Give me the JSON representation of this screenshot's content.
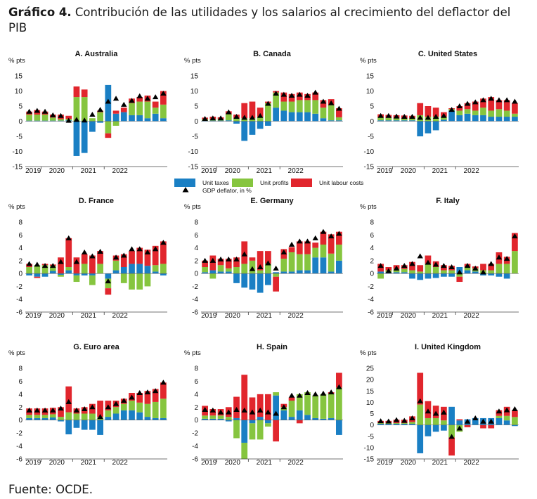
{
  "header": {
    "title_bold": "Gráfico 4.",
    "title_rest": " Contribución de las utilidades y los salarios al crecimiento del deflactor del PIB"
  },
  "footer": {
    "source": "Fuente: OCDE."
  },
  "colors": {
    "unit_taxes": "#1a7fc4",
    "unit_profits": "#86c53f",
    "unit_labour_costs": "#e1262d",
    "gdp_deflator": "#000000"
  },
  "legend": {
    "unit_taxes": "Unit taxes",
    "unit_profits": "Unit profits",
    "unit_labour_costs": "Unit labour costs",
    "gdp_deflator": "GDP deflator, in %"
  },
  "chart_data": [
    {
      "type": "bar",
      "panel": "A. Australia",
      "ylabel": "% pts",
      "ylim": [
        -15,
        15
      ],
      "yticks": [
        15,
        10,
        5,
        0,
        -5,
        -10,
        -15
      ],
      "years": [
        "2019",
        "2020",
        "2021",
        "2022"
      ],
      "series": [
        {
          "name": "Unit taxes",
          "values": [
            0.2,
            0.2,
            0.2,
            0.2,
            0.2,
            0.3,
            -11.5,
            -10.5,
            -3.5,
            -0.5,
            12,
            2.5,
            3,
            2,
            2,
            1,
            2.5,
            1
          ]
        },
        {
          "name": "Unit profits",
          "values": [
            2,
            2,
            2,
            1,
            0.5,
            0.5,
            8,
            8,
            1,
            3,
            -4,
            -1.5,
            0,
            4,
            4.5,
            5.5,
            2,
            4.5
          ]
        },
        {
          "name": "Unit labour costs",
          "values": [
            1,
            1.5,
            1,
            1,
            1.5,
            1,
            3.5,
            2.5,
            0,
            0.5,
            -1.5,
            1,
            1.5,
            1.5,
            1.5,
            2,
            2,
            4.5
          ]
        }
      ],
      "gdp_deflator": [
        3.2,
        3.5,
        3.2,
        2,
        1.8,
        0.2,
        0.5,
        0.3,
        2.2,
        3.8,
        6.5,
        7.5,
        5.5,
        6.8,
        8.3,
        7.5,
        8,
        9.2
      ]
    },
    {
      "type": "bar",
      "panel": "B. Canada",
      "ylabel": "% pts",
      "ylim": [
        -15,
        15
      ],
      "yticks": [
        15,
        10,
        5,
        0,
        -5,
        -10,
        -15
      ],
      "years": [
        "2019",
        "2020",
        "2021",
        "2022"
      ],
      "series": [
        {
          "name": "Unit taxes",
          "values": [
            0.2,
            0.2,
            0.2,
            0.3,
            -0.8,
            -6.5,
            -4.5,
            -2.5,
            -1.5,
            4.5,
            3.5,
            3,
            3,
            3,
            2.5,
            1,
            0.3,
            0.3
          ]
        },
        {
          "name": "Unit profits",
          "values": [
            0.5,
            0.5,
            0.5,
            2,
            1,
            1,
            1,
            1.5,
            6,
            5,
            3,
            3.5,
            4,
            4,
            4.5,
            3.5,
            5,
            1
          ]
        },
        {
          "name": "Unit labour costs",
          "values": [
            0.5,
            0.8,
            0.6,
            1,
            1.2,
            5,
            5.5,
            3,
            0.5,
            0.5,
            3,
            2.5,
            2.5,
            2,
            2.5,
            2.5,
            2,
            3
          ]
        }
      ],
      "gdp_deflator": [
        0.8,
        1,
        1,
        3,
        1.5,
        1.2,
        1.2,
        1.8,
        5.8,
        9.2,
        8.8,
        8.5,
        8.8,
        8.5,
        9.5,
        6.5,
        6,
        4.2
      ]
    },
    {
      "type": "bar",
      "panel": "C. United States",
      "ylabel": "% pts",
      "ylim": [
        -15,
        15
      ],
      "yticks": [
        15,
        10,
        5,
        0,
        -5,
        -10,
        -15
      ],
      "years": [
        "2019",
        "2020",
        "2021",
        "2022"
      ],
      "series": [
        {
          "name": "Unit taxes",
          "values": [
            0.3,
            0.3,
            0.3,
            0.3,
            0.3,
            -5,
            -4,
            -3,
            0.5,
            3.5,
            2,
            2.5,
            2,
            2,
            1.5,
            1.5,
            1.5,
            1.5
          ]
        },
        {
          "name": "Unit profits",
          "values": [
            1,
            0.8,
            0.7,
            0.6,
            0.7,
            2,
            1.5,
            1.5,
            1,
            0.5,
            1.5,
            1.5,
            1.5,
            2.5,
            2,
            2.5,
            2,
            1
          ]
        },
        {
          "name": "Unit labour costs",
          "values": [
            1,
            1,
            1,
            1,
            0.8,
            4,
            3.5,
            3,
            1.5,
            0.3,
            1.5,
            2,
            3,
            3,
            4.5,
            3,
            3.5,
            3.5
          ]
        }
      ],
      "gdp_deflator": [
        1.8,
        1.8,
        1.6,
        1.5,
        1.5,
        1.2,
        1.2,
        1.5,
        1.8,
        3.8,
        5,
        5.8,
        6.3,
        7,
        7.5,
        7,
        7,
        6.5
      ]
    },
    {
      "type": "bar",
      "panel": "D. France",
      "ylabel": "% pts",
      "ylim": [
        -6,
        8
      ],
      "yticks": [
        8,
        6,
        4,
        2,
        0,
        -2,
        -4,
        -6
      ],
      "years": [
        "2019",
        "2020",
        "2021",
        "2022"
      ],
      "series": [
        {
          "name": "Unit taxes",
          "values": [
            -0.3,
            -0.5,
            -0.5,
            0.4,
            -0.2,
            0.5,
            -0.3,
            -0.3,
            -0.3,
            0,
            -0.8,
            0.5,
            1,
            1.5,
            1.5,
            1.2,
            0.3,
            -0.3
          ]
        },
        {
          "name": "Unit profits",
          "values": [
            1,
            1.3,
            1.3,
            0.8,
            -0.3,
            0.5,
            -1,
            1.5,
            -1.5,
            1.5,
            -1.5,
            1.5,
            -1.5,
            -2.5,
            -2.5,
            -2,
            1,
            1.5
          ]
        },
        {
          "name": "Unit labour costs",
          "values": [
            0.5,
            -0.2,
            0.2,
            0.2,
            2.5,
            4.5,
            2.5,
            1.5,
            2.8,
            2,
            -1,
            0.8,
            2,
            2,
            2.5,
            2.5,
            3,
            3.5
          ]
        }
      ],
      "gdp_deflator": [
        1.5,
        1.4,
        1.2,
        1.2,
        1.8,
        5.5,
        1.8,
        3.3,
        2.7,
        3.4,
        -1.2,
        2.5,
        2.8,
        3.8,
        3.8,
        3.3,
        3.8,
        4.8
      ]
    },
    {
      "type": "bar",
      "panel": "E. Germany",
      "ylabel": "% pts",
      "ylim": [
        -6,
        8
      ],
      "yticks": [
        8,
        6,
        4,
        2,
        0,
        -2,
        -4,
        -6
      ],
      "years": [
        "2019",
        "2020",
        "2021",
        "2022"
      ],
      "series": [
        {
          "name": "Unit taxes",
          "values": [
            0.2,
            0.5,
            0.3,
            0.3,
            -1.5,
            -2.2,
            -2.5,
            -3,
            -1.8,
            0.2,
            0.3,
            0.3,
            0.5,
            0.5,
            2.5,
            2.5,
            0.3,
            2
          ]
        },
        {
          "name": "Unit profits",
          "values": [
            0.8,
            -0.8,
            1,
            0.5,
            1,
            1.5,
            2,
            0.5,
            1.5,
            -0.5,
            2,
            3,
            2.5,
            2.5,
            1.5,
            2,
            2.8,
            2.5
          ]
        },
        {
          "name": "Unit labour costs",
          "values": [
            1,
            2.3,
            1,
            1.5,
            1.5,
            3.5,
            0.5,
            3,
            2,
            -2.3,
            1.5,
            0.8,
            2,
            2,
            0.8,
            2,
            3,
            2
          ]
        }
      ],
      "gdp_deflator": [
        2,
        2,
        2.2,
        2.2,
        2.2,
        3,
        0.7,
        1,
        1.6,
        0.8,
        3.3,
        4.5,
        5,
        5,
        5.5,
        6.5,
        5.8,
        6.2
      ]
    },
    {
      "type": "bar",
      "panel": "F. Italy",
      "ylabel": "% pts",
      "ylim": [
        -6,
        8
      ],
      "yticks": [
        8,
        6,
        4,
        2,
        0,
        -2,
        -4,
        -6
      ],
      "years": [
        "2019",
        "2020",
        "2021",
        "2022"
      ],
      "series": [
        {
          "name": "Unit taxes",
          "values": [
            0.3,
            0.2,
            0.2,
            0.2,
            -0.8,
            -1,
            -0.8,
            -0.7,
            -0.5,
            -0.5,
            1,
            0.5,
            0.3,
            -0.3,
            -0.3,
            -0.5,
            -0.8,
            0
          ]
        },
        {
          "name": "Unit profits",
          "values": [
            -0.8,
            0.3,
            0.5,
            0.5,
            0.5,
            0.3,
            1.5,
            1,
            0.5,
            0.5,
            -0.5,
            0.5,
            0.5,
            0.5,
            0.5,
            1.5,
            1.5,
            3.5
          ]
        },
        {
          "name": "Unit labour costs",
          "values": [
            1.2,
            0.5,
            0.6,
            0.6,
            1.3,
            1,
            1.3,
            0.9,
            0.8,
            0.7,
            -0.8,
            0.5,
            0.3,
            1,
            1,
            1.8,
            1.1,
            2.8
          ]
        }
      ],
      "gdp_deflator": [
        1.2,
        0.4,
        0.8,
        1.2,
        1.5,
        2.7,
        1.7,
        1.4,
        1.2,
        1,
        0.2,
        1.2,
        0.8,
        0.2,
        1.5,
        2.5,
        2.3,
        5.8
      ]
    },
    {
      "type": "bar",
      "panel": "G. Euro area",
      "ylabel": "% pts",
      "ylim": [
        -6,
        8
      ],
      "yticks": [
        8,
        6,
        4,
        2,
        0,
        -2,
        -4,
        -6
      ],
      "years": [
        "2019",
        "2020",
        "2021",
        "2022"
      ],
      "series": [
        {
          "name": "Unit taxes",
          "values": [
            0.3,
            0.3,
            0.3,
            0.4,
            -0.2,
            -2.2,
            -1.2,
            -1.5,
            -1.5,
            -2.3,
            0.5,
            1,
            1.5,
            1.5,
            1.2,
            0.5,
            0.3,
            0.3
          ]
        },
        {
          "name": "Unit profits",
          "values": [
            0.5,
            0.5,
            0.5,
            0.5,
            0.5,
            1.2,
            1,
            1,
            1,
            0.5,
            1,
            1,
            1,
            1.5,
            1.5,
            2,
            2.5,
            3
          ]
        },
        {
          "name": "Unit labour costs",
          "values": [
            1,
            1,
            1,
            1,
            1.5,
            4,
            0.8,
            1,
            1.5,
            2.5,
            1.5,
            1,
            0.8,
            1.2,
            1.5,
            2,
            2,
            2.5
          ]
        }
      ],
      "gdp_deflator": [
        1.5,
        1.5,
        1.5,
        1.5,
        1.8,
        2.8,
        1.5,
        1.7,
        2,
        0.5,
        2,
        2.5,
        3,
        3.5,
        4.2,
        4.3,
        4.5,
        5.8
      ]
    },
    {
      "type": "bar",
      "panel": "H. Spain",
      "ylabel": "% pts",
      "ylim": [
        -6,
        8
      ],
      "yticks": [
        8,
        6,
        4,
        2,
        0,
        -2,
        -4,
        -6
      ],
      "years": [
        "2019",
        "2020",
        "2021",
        "2022"
      ],
      "series": [
        {
          "name": "Unit taxes",
          "values": [
            0.2,
            0.2,
            0.2,
            -0.2,
            0.3,
            -3.5,
            -0.5,
            0.5,
            -0.5,
            3.8,
            1.5,
            0.5,
            1.5,
            0.8,
            0.3,
            0.2,
            0.3,
            -2.3
          ]
        },
        {
          "name": "Unit profits",
          "values": [
            0.5,
            0.5,
            0.5,
            0.5,
            -2.8,
            -2.5,
            -2.5,
            -3,
            -0.5,
            0.5,
            0.5,
            2.5,
            2.5,
            3.5,
            3.5,
            3.8,
            3.8,
            5
          ]
        },
        {
          "name": "Unit labour costs",
          "values": [
            1.5,
            1,
            1,
            1.5,
            3.3,
            7,
            3.5,
            3.5,
            4,
            -3.3,
            0.5,
            0.5,
            -0.5,
            0,
            0,
            0,
            0.2,
            2.3
          ]
        }
      ],
      "gdp_deflator": [
        1.6,
        1.5,
        1.2,
        1.2,
        1.6,
        1.5,
        1.2,
        1.5,
        1.2,
        1,
        2,
        3.8,
        3.8,
        4.2,
        4,
        4.1,
        4.3,
        5.1
      ]
    },
    {
      "type": "bar",
      "panel": "I. United Kingdom",
      "ylabel": "% pts",
      "ylim": [
        -15,
        25
      ],
      "yticks": [
        25,
        20,
        15,
        10,
        5,
        0,
        -5,
        -10,
        -15
      ],
      "years": [
        "2019",
        "2020",
        "2021",
        "2022"
      ],
      "series": [
        {
          "name": "Unit taxes",
          "values": [
            0.5,
            0.5,
            0.5,
            0.5,
            0.5,
            -12.5,
            -5,
            -3,
            -2.5,
            8,
            2,
            2.5,
            3,
            3,
            3,
            3,
            2,
            -0.5
          ]
        },
        {
          "name": "Unit profits",
          "values": [
            0.3,
            0.3,
            0.3,
            0.3,
            0.8,
            9,
            3,
            3,
            2,
            -5.5,
            -3,
            0,
            0,
            0,
            0,
            1,
            2,
            3.5
          ]
        },
        {
          "name": "Unit labour costs",
          "values": [
            1,
            1,
            1.5,
            1.5,
            2.5,
            14,
            7.5,
            5.5,
            6,
            -8,
            0.5,
            -1,
            0,
            -1.5,
            -1.5,
            2.5,
            4,
            3
          ]
        }
      ],
      "gdp_deflator": [
        1.7,
        1.6,
        2.2,
        1.9,
        3,
        10.5,
        6,
        5,
        5.5,
        -5.2,
        -1.5,
        1.5,
        3,
        1.5,
        1.5,
        6,
        6.5,
        7
      ]
    }
  ]
}
